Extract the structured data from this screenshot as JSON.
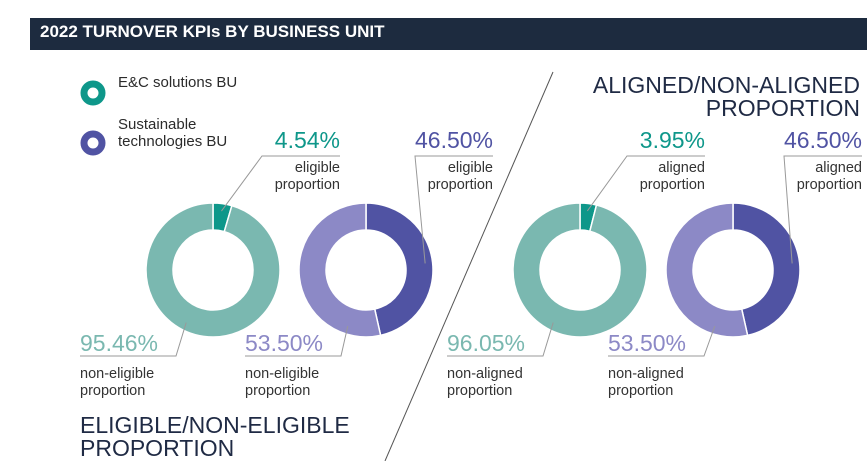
{
  "header": {
    "title": "2022 TURNOVER KPIs BY BUSINESS UNIT"
  },
  "legend": [
    {
      "name": "E&C solutions BU",
      "color": "#0e978a"
    },
    {
      "name": "Sustainable technologies BU",
      "color": "#5053a3"
    }
  ],
  "sections": [
    {
      "title": "ELIGIBLE/NON-ELIGIBLE PROPORTION"
    },
    {
      "title": "ALIGNED/NON-ALIGNED PROPORTION"
    }
  ],
  "chart_data": [
    {
      "type": "donut",
      "categories": [
        "eligible proportion",
        "non-eligible proportion"
      ],
      "values": [
        4.54,
        95.46
      ],
      "value_labels": [
        "4.54%",
        "95.46%"
      ],
      "colors": [
        "#0e978a",
        "#7ab8b0"
      ]
    },
    {
      "type": "donut",
      "categories": [
        "eligible proportion",
        "non-eligible proportion"
      ],
      "values": [
        46.5,
        53.5
      ],
      "value_labels": [
        "46.50%",
        "53.50%"
      ],
      "colors": [
        "#5053a3",
        "#8c89c6"
      ]
    },
    {
      "type": "donut",
      "categories": [
        "aligned proportion",
        "non-aligned proportion"
      ],
      "values": [
        3.95,
        96.05
      ],
      "value_labels": [
        "3.95%",
        "96.05%"
      ],
      "colors": [
        "#0e978a",
        "#7ab8b0"
      ]
    },
    {
      "type": "donut",
      "categories": [
        "aligned proportion",
        "non-aligned proportion"
      ],
      "values": [
        46.5,
        53.5
      ],
      "value_labels": [
        "46.50%",
        "53.50%"
      ],
      "colors": [
        "#5053a3",
        "#8c89c6"
      ]
    }
  ]
}
